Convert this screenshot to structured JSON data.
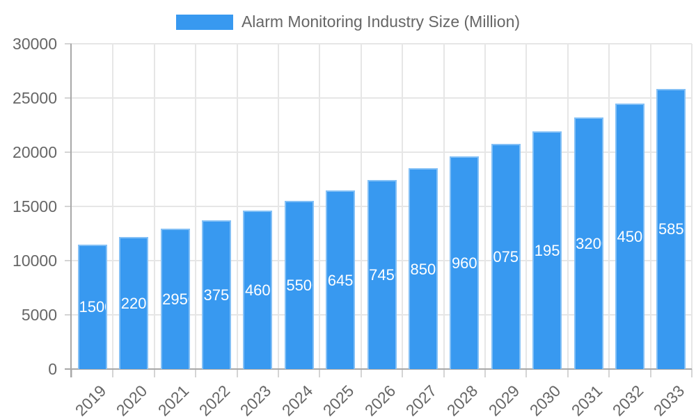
{
  "legend": {
    "label": "Alarm Monitoring Industry Size (Million)"
  },
  "chart_data": {
    "type": "bar",
    "title": "Alarm Monitoring Industry Size (Million)",
    "categories": [
      "2019",
      "2020",
      "2021",
      "2022",
      "2023",
      "2024",
      "2025",
      "2026",
      "2027",
      "2028",
      "2029",
      "2030",
      "2031",
      "2032",
      "2033"
    ],
    "values": [
      11500,
      12200,
      12950,
      13750,
      14600,
      15500,
      16450,
      17450,
      18500,
      19600,
      20750,
      21950,
      23200,
      24500,
      25850
    ],
    "xlabel": "",
    "ylabel": "",
    "ylim": [
      0,
      30000
    ],
    "ytick_step": 5000,
    "yticks": [
      0,
      5000,
      10000,
      15000,
      20000,
      25000,
      30000
    ],
    "grid": true,
    "legend_position": "top",
    "bar_color": "#3899f0",
    "bar_edge_color": "#77b7f4",
    "value_label_color": "#ffffff",
    "grid_color": "#e6e6e6",
    "axis_color": "#a8a8a8",
    "tick_label_color": "#666666"
  }
}
